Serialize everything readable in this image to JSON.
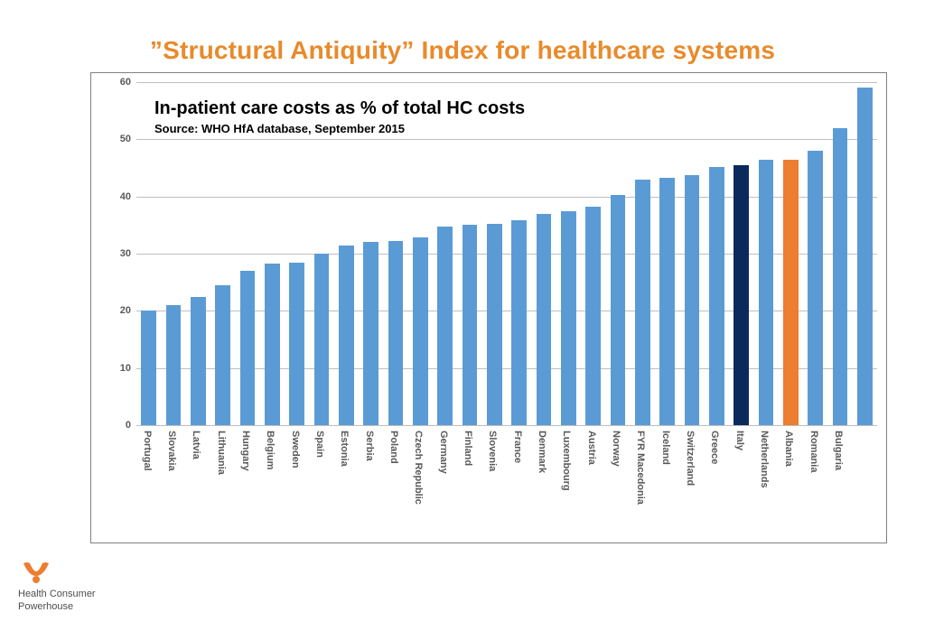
{
  "title": "”Structural Antiquity” Index for healthcare systems",
  "chart": {
    "type": "bar",
    "title": "In-patient care costs as % of total HC costs",
    "source": "Source: WHO HfA database, September 2015",
    "ylim": [
      0,
      60
    ],
    "ytick_step": 10,
    "background_color": "#ffffff",
    "grid_color": "#bfbfbf",
    "axis_label_color": "#595959",
    "axis_label_fontsize": 11,
    "title_fontsize": 20,
    "source_fontsize": 13,
    "bar_width_ratio": 0.62,
    "default_bar_color": "#5b9bd5",
    "categories": [
      {
        "label": "Portugal",
        "value": 20.0,
        "color": "#5b9bd5"
      },
      {
        "label": "Slovakia",
        "value": 21.0,
        "color": "#5b9bd5"
      },
      {
        "label": "Latvia",
        "value": 22.5,
        "color": "#5b9bd5"
      },
      {
        "label": "Lithuania",
        "value": 24.5,
        "color": "#5b9bd5"
      },
      {
        "label": "Hungary",
        "value": 27.0,
        "color": "#5b9bd5"
      },
      {
        "label": "Belgium",
        "value": 28.2,
        "color": "#5b9bd5"
      },
      {
        "label": "Sweden",
        "value": 28.5,
        "color": "#5b9bd5"
      },
      {
        "label": "Spain",
        "value": 30.0,
        "color": "#5b9bd5"
      },
      {
        "label": "Estonia",
        "value": 31.5,
        "color": "#5b9bd5"
      },
      {
        "label": "Serbia",
        "value": 32.0,
        "color": "#5b9bd5"
      },
      {
        "label": "Poland",
        "value": 32.2,
        "color": "#5b9bd5"
      },
      {
        "label": "Czech Republic",
        "value": 32.8,
        "color": "#5b9bd5"
      },
      {
        "label": "Germany",
        "value": 34.8,
        "color": "#5b9bd5"
      },
      {
        "label": "Finland",
        "value": 35.0,
        "color": "#5b9bd5"
      },
      {
        "label": "Slovenia",
        "value": 35.2,
        "color": "#5b9bd5"
      },
      {
        "label": "France",
        "value": 35.8,
        "color": "#5b9bd5"
      },
      {
        "label": "Denmark",
        "value": 37.0,
        "color": "#5b9bd5"
      },
      {
        "label": "Luxembourg",
        "value": 37.5,
        "color": "#5b9bd5"
      },
      {
        "label": "Austria",
        "value": 38.2,
        "color": "#5b9bd5"
      },
      {
        "label": "Norway",
        "value": 40.2,
        "color": "#5b9bd5"
      },
      {
        "label": "FYR Macedonia",
        "value": 43.0,
        "color": "#5b9bd5"
      },
      {
        "label": "Iceland",
        "value": 43.2,
        "color": "#5b9bd5"
      },
      {
        "label": "Switzerland",
        "value": 43.8,
        "color": "#5b9bd5"
      },
      {
        "label": "Greece",
        "value": 45.2,
        "color": "#5b9bd5"
      },
      {
        "label": "Italy",
        "value": 45.5,
        "color": "#0a2a5c"
      },
      {
        "label": "Netherlands",
        "value": 46.5,
        "color": "#5b9bd5"
      },
      {
        "label": "Albania",
        "value": 46.5,
        "color": "#ed7d31"
      },
      {
        "label": "Romania",
        "value": 48.0,
        "color": "#5b9bd5"
      },
      {
        "label": "Bulgaria",
        "value": 52.0,
        "color": "#5b9bd5"
      },
      {
        "label": " ",
        "value": 59.0,
        "color": "#5b9bd5"
      }
    ]
  },
  "logo": {
    "line1": "Health Consumer",
    "line2": "Powerhouse",
    "icon_color": "#ed7d31"
  }
}
